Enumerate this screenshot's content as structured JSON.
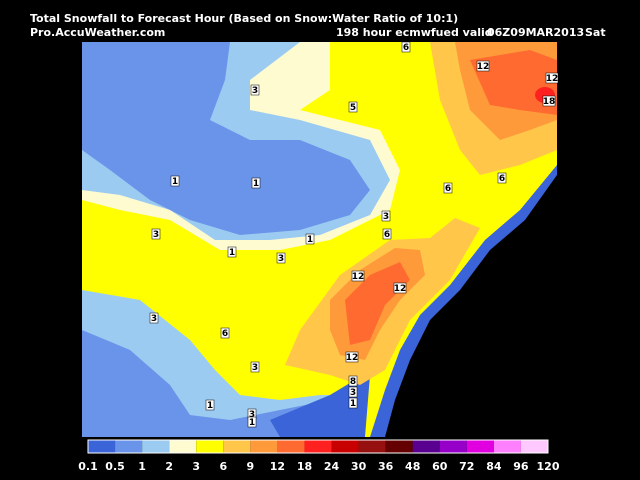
{
  "header": {
    "title": "Total Snowfall to Forecast Hour (Based on Snow:Water Ratio of 10:1)",
    "source": "Pro.AccuWeather.com",
    "run": "198 hour ecmwfued valid",
    "valid": "06Z09MAR2013",
    "day": "Sat"
  },
  "map": {
    "labels": [
      "6",
      "12",
      "12",
      "18",
      "3",
      "5",
      "1",
      "1",
      "6",
      "6",
      "3",
      "6",
      "3",
      "1",
      "1",
      "3",
      "12",
      "12",
      "3",
      "6",
      "12",
      "3",
      "8",
      "3",
      "1",
      "1",
      "3",
      "1"
    ]
  },
  "legend": {
    "labels": [
      "0.1",
      "0.5",
      "1",
      "2",
      "3",
      "6",
      "9",
      "12",
      "18",
      "24",
      "30",
      "36",
      "48",
      "60",
      "72",
      "84",
      "96",
      "120"
    ],
    "colors": [
      "#3a64d8",
      "#6a94ea",
      "#9ccbf2",
      "#fffbd0",
      "#ffff00",
      "#ffc64a",
      "#ff9a3a",
      "#ff6a30",
      "#ff2020",
      "#c80000",
      "#961010",
      "#640000",
      "#5a0090",
      "#9600c8",
      "#e000e0",
      "#ff80ff",
      "#ffc8ff"
    ]
  }
}
